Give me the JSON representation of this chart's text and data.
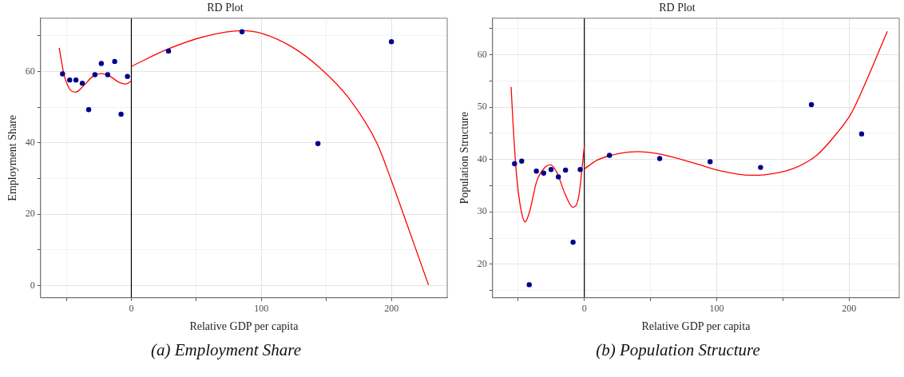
{
  "chart_data": [
    {
      "type": "scatter",
      "title": "RD Plot",
      "xlabel": "Relative GDP per capita",
      "ylabel": "Employment Share",
      "xlim": [
        -69.8,
        242.9
      ],
      "ylim": [
        -3.4,
        74.9
      ],
      "xticks": [
        {
          "value": -50,
          "label": null
        },
        0,
        {
          "value": 50,
          "label": null
        },
        100,
        {
          "value": 150,
          "label": null
        },
        200
      ],
      "yticks": [
        0,
        {
          "value": 10,
          "label": null
        },
        20,
        {
          "value": 30,
          "label": null
        },
        40,
        {
          "value": 50,
          "label": null
        },
        60,
        {
          "value": 70,
          "label": null
        }
      ],
      "grid": true,
      "legend": false,
      "marker": "circle",
      "ref_lines": [
        {
          "axis": "x",
          "value": 0,
          "color": "#000000"
        }
      ],
      "annotations": [
        "(a) Employment Share"
      ],
      "series": [
        {
          "color": "#00008b",
          "x": [
            -52.9,
            -47.4,
            -42.6,
            -37.7,
            -32.8,
            -28.0,
            -23.1,
            -18.2,
            -12.8,
            -7.9,
            -3.0,
            28.6,
            85.1,
            143.5,
            200
          ],
          "values": [
            59.3,
            57.6,
            57.6,
            56.7,
            49.3,
            59.1,
            62.2,
            59.1,
            62.8,
            48.0,
            58.6,
            65.7,
            71.1,
            39.8,
            68.3
          ]
        },
        {
          "type": "line",
          "color": "#ff0000",
          "marker": "none",
          "x": [
            -55.5,
            -51.7,
            -47.3,
            -42.9,
            -36.2,
            -29.6,
            -23.0,
            -16.4,
            -9.7,
            -4.2,
            0
          ],
          "values": [
            66.6,
            59.0,
            55.0,
            54.2,
            56.2,
            58.6,
            59.4,
            58.6,
            57.0,
            56.5,
            57.3
          ]
        },
        {
          "type": "line",
          "color": "#ff0000",
          "marker": "none",
          "x": [
            0,
            27.8,
            56.6,
            85.3,
            100.8,
            122.9,
            145,
            167,
            189,
            200,
            211,
            228.5
          ],
          "values": [
            61.4,
            66.2,
            69.8,
            71.4,
            70.6,
            67.0,
            61.0,
            52.6,
            39.8,
            29.4,
            18.2,
            0.2
          ]
        }
      ]
    },
    {
      "type": "scatter",
      "title": "RD Plot",
      "xlabel": "Relative GDP per capita",
      "ylabel": "Population Structure",
      "xlim": [
        -69.3,
        237.8
      ],
      "ylim": [
        13.6,
        67.0
      ],
      "xticks": [
        {
          "value": -50,
          "label": null
        },
        0,
        {
          "value": 50,
          "label": null
        },
        100,
        {
          "value": 150,
          "label": null
        },
        200
      ],
      "yticks": [
        {
          "value": 15,
          "label": null
        },
        20,
        {
          "value": 25,
          "label": null
        },
        30,
        {
          "value": 35,
          "label": null
        },
        40,
        {
          "value": 45,
          "label": null
        },
        50,
        {
          "value": 55,
          "label": null
        },
        60,
        {
          "value": 65,
          "label": null
        }
      ],
      "grid": true,
      "legend": false,
      "marker": "circle",
      "ref_lines": [
        {
          "axis": "x",
          "value": 0,
          "color": "#000000"
        }
      ],
      "annotations": [
        "(b) Population Structure"
      ],
      "series": [
        {
          "color": "#00008b",
          "x": [
            -52.7,
            -47.3,
            -41.6,
            -36.2,
            -30.7,
            -25.1,
            -19.6,
            -14.2,
            -8.5,
            -3.1,
            19.0,
            56.9,
            95.0,
            133.1,
            171.5,
            209.4
          ],
          "values": [
            39.2,
            39.7,
            16.1,
            37.8,
            37.4,
            38.1,
            36.7,
            38.0,
            24.2,
            38.1,
            40.8,
            40.2,
            39.6,
            38.5,
            50.5,
            44.9
          ]
        },
        {
          "type": "line",
          "color": "#ff0000",
          "marker": "none",
          "x": [
            -55.3,
            -53.8,
            -51.2,
            -47.9,
            -44.7,
            -41.4,
            -35.9,
            -29.4,
            -25.5,
            -20.7,
            -14.2,
            -8.7,
            -4.4,
            0
          ],
          "values": [
            53.9,
            46.7,
            37.0,
            30.5,
            28.1,
            30.0,
            35.9,
            38.6,
            39.0,
            37.5,
            33.2,
            30.9,
            32.7,
            42.6
          ]
        },
        {
          "type": "line",
          "color": "#ff0000",
          "marker": "none",
          "x": [
            0,
            9.8,
            27.2,
            40.3,
            57.7,
            81.7,
            103.5,
            125.3,
            136.2,
            158,
            175.4,
            190.6,
            201.5,
            212.4,
            228.8
          ],
          "values": [
            38.2,
            39.9,
            41.2,
            41.5,
            41.0,
            39.4,
            37.8,
            37.0,
            37.1,
            38.3,
            40.8,
            45.0,
            48.8,
            54.7,
            64.5
          ]
        }
      ]
    }
  ]
}
